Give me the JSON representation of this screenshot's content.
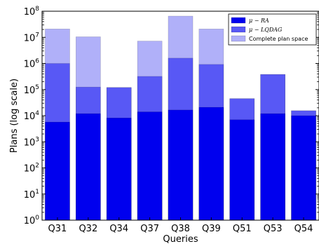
{
  "chart_data": {
    "type": "bar",
    "title": "",
    "xlabel": "Queries",
    "ylabel": "Plans (log scale)",
    "yscale": "log",
    "ylim": [
      1,
      100000000
    ],
    "y_ticks": [
      {
        "value": 1,
        "base": "10",
        "exp": "0"
      },
      {
        "value": 10,
        "base": "10",
        "exp": "1"
      },
      {
        "value": 100,
        "base": "10",
        "exp": "2"
      },
      {
        "value": 1000,
        "base": "10",
        "exp": "3"
      },
      {
        "value": 10000,
        "base": "10",
        "exp": "4"
      },
      {
        "value": 100000,
        "base": "10",
        "exp": "5"
      },
      {
        "value": 1000000,
        "base": "10",
        "exp": "6"
      },
      {
        "value": 10000000,
        "base": "10",
        "exp": "7"
      },
      {
        "value": 100000000,
        "base": "10",
        "exp": "8"
      }
    ],
    "categories": [
      "Q31",
      "Q32",
      "Q34",
      "Q37",
      "Q38",
      "Q39",
      "Q51",
      "Q53",
      "Q54"
    ],
    "grid": false,
    "legend_position": "top-right",
    "series": [
      {
        "name": "μ − RA",
        "color": "#0000ee",
        "values": [
          5700,
          12000,
          8200,
          14000,
          16500,
          21000,
          7000,
          12000,
          10000
        ]
      },
      {
        "name": "μ − LQDAG",
        "color": "#5858f5",
        "values": [
          1000000,
          125000,
          120000,
          320000,
          1600000,
          920000,
          45000,
          380000,
          15500
        ]
      },
      {
        "name": "Complete plan space",
        "color": "#b0b0f9",
        "values": [
          21000000,
          10500000,
          120000,
          7200000,
          65000000,
          21000000,
          45000,
          380000,
          15500
        ]
      }
    ]
  }
}
